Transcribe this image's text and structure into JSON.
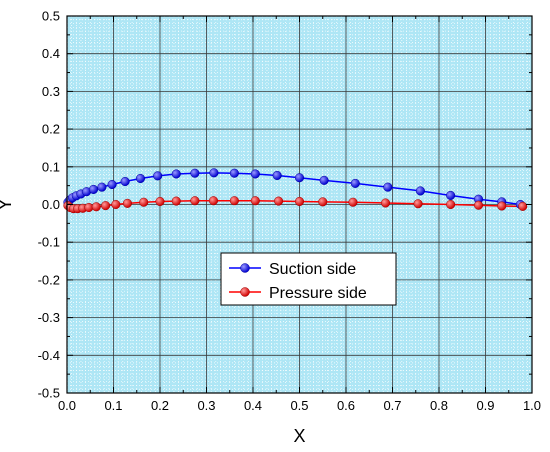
{
  "chart_data": {
    "type": "line",
    "title": "",
    "xlabel": "X",
    "ylabel": "Y",
    "xlim": [
      0.0,
      1.0
    ],
    "ylim": [
      -0.5,
      0.5
    ],
    "xticks": [
      "0.0",
      "0.1",
      "0.2",
      "0.3",
      "0.4",
      "0.5",
      "0.6",
      "0.7",
      "0.8",
      "0.9",
      "1.0"
    ],
    "yticks": [
      "-0.5",
      "-0.4",
      "-0.3",
      "-0.2",
      "-0.1",
      "0.0",
      "0.1",
      "0.2",
      "0.3",
      "0.4",
      "0.5"
    ],
    "grid": true,
    "legend_position": "center",
    "series": [
      {
        "name": "Suction side",
        "color": "#0000ff",
        "x": [
          0.002,
          0.006,
          0.012,
          0.02,
          0.03,
          0.042,
          0.057,
          0.075,
          0.097,
          0.125,
          0.158,
          0.195,
          0.235,
          0.275,
          0.316,
          0.36,
          0.405,
          0.452,
          0.5,
          0.553,
          0.62,
          0.69,
          0.76,
          0.825,
          0.885,
          0.935,
          0.975
        ],
        "y": [
          0.006,
          0.012,
          0.018,
          0.023,
          0.028,
          0.034,
          0.04,
          0.046,
          0.053,
          0.061,
          0.069,
          0.076,
          0.081,
          0.083,
          0.084,
          0.083,
          0.081,
          0.077,
          0.071,
          0.064,
          0.056,
          0.046,
          0.036,
          0.024,
          0.014,
          0.007,
          0.0
        ]
      },
      {
        "name": "Pressure side",
        "color": "#ff0000",
        "x": [
          0.002,
          0.007,
          0.014,
          0.023,
          0.034,
          0.047,
          0.063,
          0.083,
          0.105,
          0.13,
          0.165,
          0.2,
          0.235,
          0.275,
          0.315,
          0.36,
          0.405,
          0.455,
          0.5,
          0.55,
          0.615,
          0.685,
          0.755,
          0.825,
          0.885,
          0.935,
          0.98
        ],
        "y": [
          -0.003,
          -0.008,
          -0.011,
          -0.011,
          -0.01,
          -0.008,
          -0.006,
          -0.003,
          0.0,
          0.003,
          0.006,
          0.008,
          0.009,
          0.01,
          0.01,
          0.01,
          0.01,
          0.009,
          0.008,
          0.007,
          0.006,
          0.004,
          0.002,
          0.0,
          -0.002,
          -0.004,
          -0.005
        ]
      }
    ]
  }
}
